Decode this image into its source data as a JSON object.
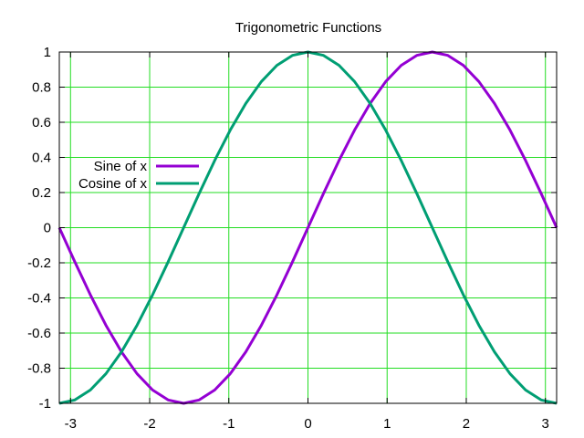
{
  "chart_data": {
    "type": "line",
    "title": "Trigonometric Functions",
    "xlabel": "",
    "ylabel": "",
    "xlim": [
      -3.14159,
      3.14159
    ],
    "ylim": [
      -1,
      1
    ],
    "x_ticks": [
      -3,
      -2,
      -1,
      0,
      1,
      2,
      3
    ],
    "y_ticks": [
      -1,
      -0.8,
      -0.6,
      -0.4,
      -0.2,
      0,
      0.2,
      0.4,
      0.6,
      0.8,
      1
    ],
    "x_tick_labels": [
      "-3",
      "-2",
      "-1",
      "0",
      "1",
      "2",
      "3"
    ],
    "y_tick_labels": [
      "-1",
      "-0.8",
      "-0.6",
      "-0.4",
      "-0.2",
      "0",
      "0.2",
      "0.4",
      "0.6",
      "0.8",
      "1"
    ],
    "grid": true,
    "grid_color": "#22dd22",
    "legend_position": "left",
    "series": [
      {
        "name": "Sine of x",
        "color": "#9400d3",
        "x": [
          -3.14159,
          -2.94524,
          -2.74889,
          -2.55254,
          -2.35619,
          -2.15984,
          -1.9635,
          -1.76715,
          -1.5708,
          -1.37445,
          -1.1781,
          -0.98175,
          -0.7854,
          -0.58905,
          -0.3927,
          -0.19635,
          0.0,
          0.19635,
          0.3927,
          0.58905,
          0.7854,
          0.98175,
          1.1781,
          1.37445,
          1.5708,
          1.76715,
          1.9635,
          2.15984,
          2.35619,
          2.55254,
          2.74889,
          2.94524,
          3.14159
        ],
        "y": [
          0.0,
          -0.19509,
          -0.38268,
          -0.55557,
          -0.70711,
          -0.83147,
          -0.92388,
          -0.98079,
          -1.0,
          -0.98079,
          -0.92388,
          -0.83147,
          -0.70711,
          -0.55557,
          -0.38268,
          -0.19509,
          0.0,
          0.19509,
          0.38268,
          0.55557,
          0.70711,
          0.83147,
          0.92388,
          0.98079,
          1.0,
          0.98079,
          0.92388,
          0.83147,
          0.70711,
          0.55557,
          0.38268,
          0.19509,
          0.0
        ]
      },
      {
        "name": "Cosine of x",
        "color": "#009e73",
        "x": [
          -3.14159,
          -2.94524,
          -2.74889,
          -2.55254,
          -2.35619,
          -2.15984,
          -1.9635,
          -1.76715,
          -1.5708,
          -1.37445,
          -1.1781,
          -0.98175,
          -0.7854,
          -0.58905,
          -0.3927,
          -0.19635,
          0.0,
          0.19635,
          0.3927,
          0.58905,
          0.7854,
          0.98175,
          1.1781,
          1.37445,
          1.5708,
          1.76715,
          1.9635,
          2.15984,
          2.35619,
          2.55254,
          2.74889,
          2.94524,
          3.14159
        ],
        "y": [
          -1.0,
          -0.98079,
          -0.92388,
          -0.83147,
          -0.70711,
          -0.55557,
          -0.38268,
          -0.19509,
          0.0,
          0.19509,
          0.38268,
          0.55557,
          0.70711,
          0.83147,
          0.92388,
          0.98079,
          1.0,
          0.98079,
          0.92388,
          0.83147,
          0.70711,
          0.55557,
          0.38268,
          0.19509,
          0.0,
          -0.19509,
          -0.38268,
          -0.55557,
          -0.70711,
          -0.83147,
          -0.92388,
          -0.98079,
          -1.0
        ]
      }
    ]
  }
}
